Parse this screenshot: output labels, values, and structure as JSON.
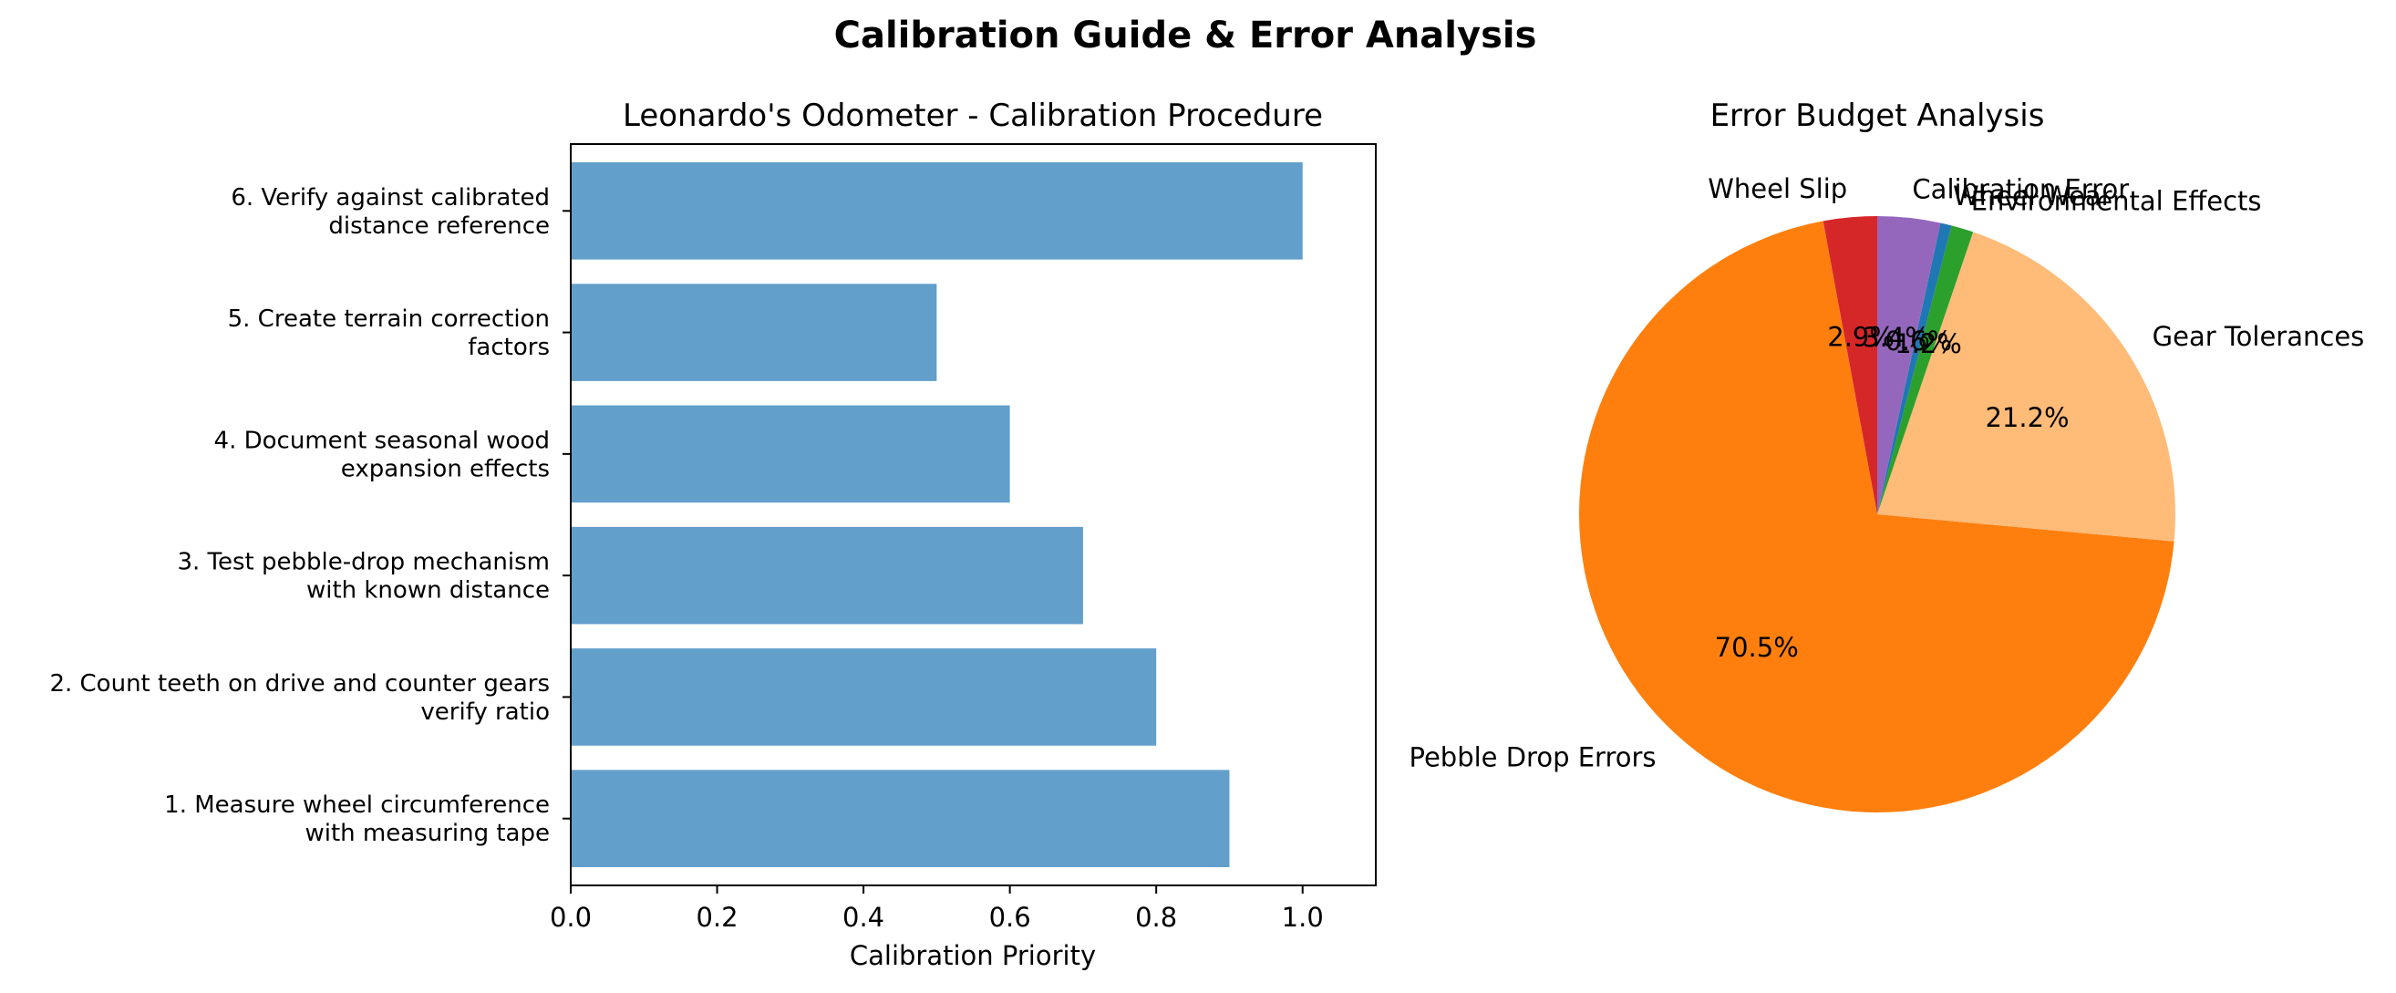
{
  "figure": {
    "suptitle": "Calibration Guide & Error Analysis"
  },
  "chart_data": [
    {
      "type": "bar",
      "orientation": "horizontal",
      "title": "Leonardo's Odometer - Calibration Procedure",
      "xlabel": "Calibration Priority",
      "ylabel": "",
      "xlim": [
        0,
        1.1
      ],
      "xticks": [
        "0.0",
        "0.2",
        "0.4",
        "0.6",
        "0.8",
        "1.0"
      ],
      "grid": false,
      "bar_color": "#629fcb",
      "categories": [
        [
          "1. Measure wheel circumference",
          "with measuring tape"
        ],
        [
          "2. Count teeth on drive and counter gears",
          "verify ratio"
        ],
        [
          "3. Test pebble-drop mechanism",
          "with known distance"
        ],
        [
          "4. Document seasonal wood",
          "expansion effects"
        ],
        [
          "5. Create terrain correction",
          "factors"
        ],
        [
          "6. Verify against calibrated",
          "distance reference"
        ]
      ],
      "values": [
        0.9,
        0.8,
        0.7,
        0.6,
        0.5,
        1.0
      ]
    },
    {
      "type": "pie",
      "title": "Error Budget Analysis",
      "slices": [
        {
          "label": "Wheel Slip",
          "pct_label": "2.9%",
          "value": 2.9,
          "color": "#d62728"
        },
        {
          "label": "Pebble Drop Errors",
          "pct_label": "70.5%",
          "value": 70.5,
          "color": "#ff7f0e"
        },
        {
          "label": "Gear Tolerances",
          "pct_label": "21.2%",
          "value": 21.2,
          "color": "#ffbb78"
        },
        {
          "label": "Environmental Effects",
          "pct_label": "1.2%",
          "value": 1.2,
          "color": "#2ca02c"
        },
        {
          "label": "Wheel Wear",
          "pct_label": "0.6%",
          "value": 0.6,
          "color": "#1f77b4"
        },
        {
          "label": "Calibration Error",
          "pct_label": "3.4%",
          "value": 3.4,
          "color": "#9467bd"
        }
      ]
    }
  ]
}
